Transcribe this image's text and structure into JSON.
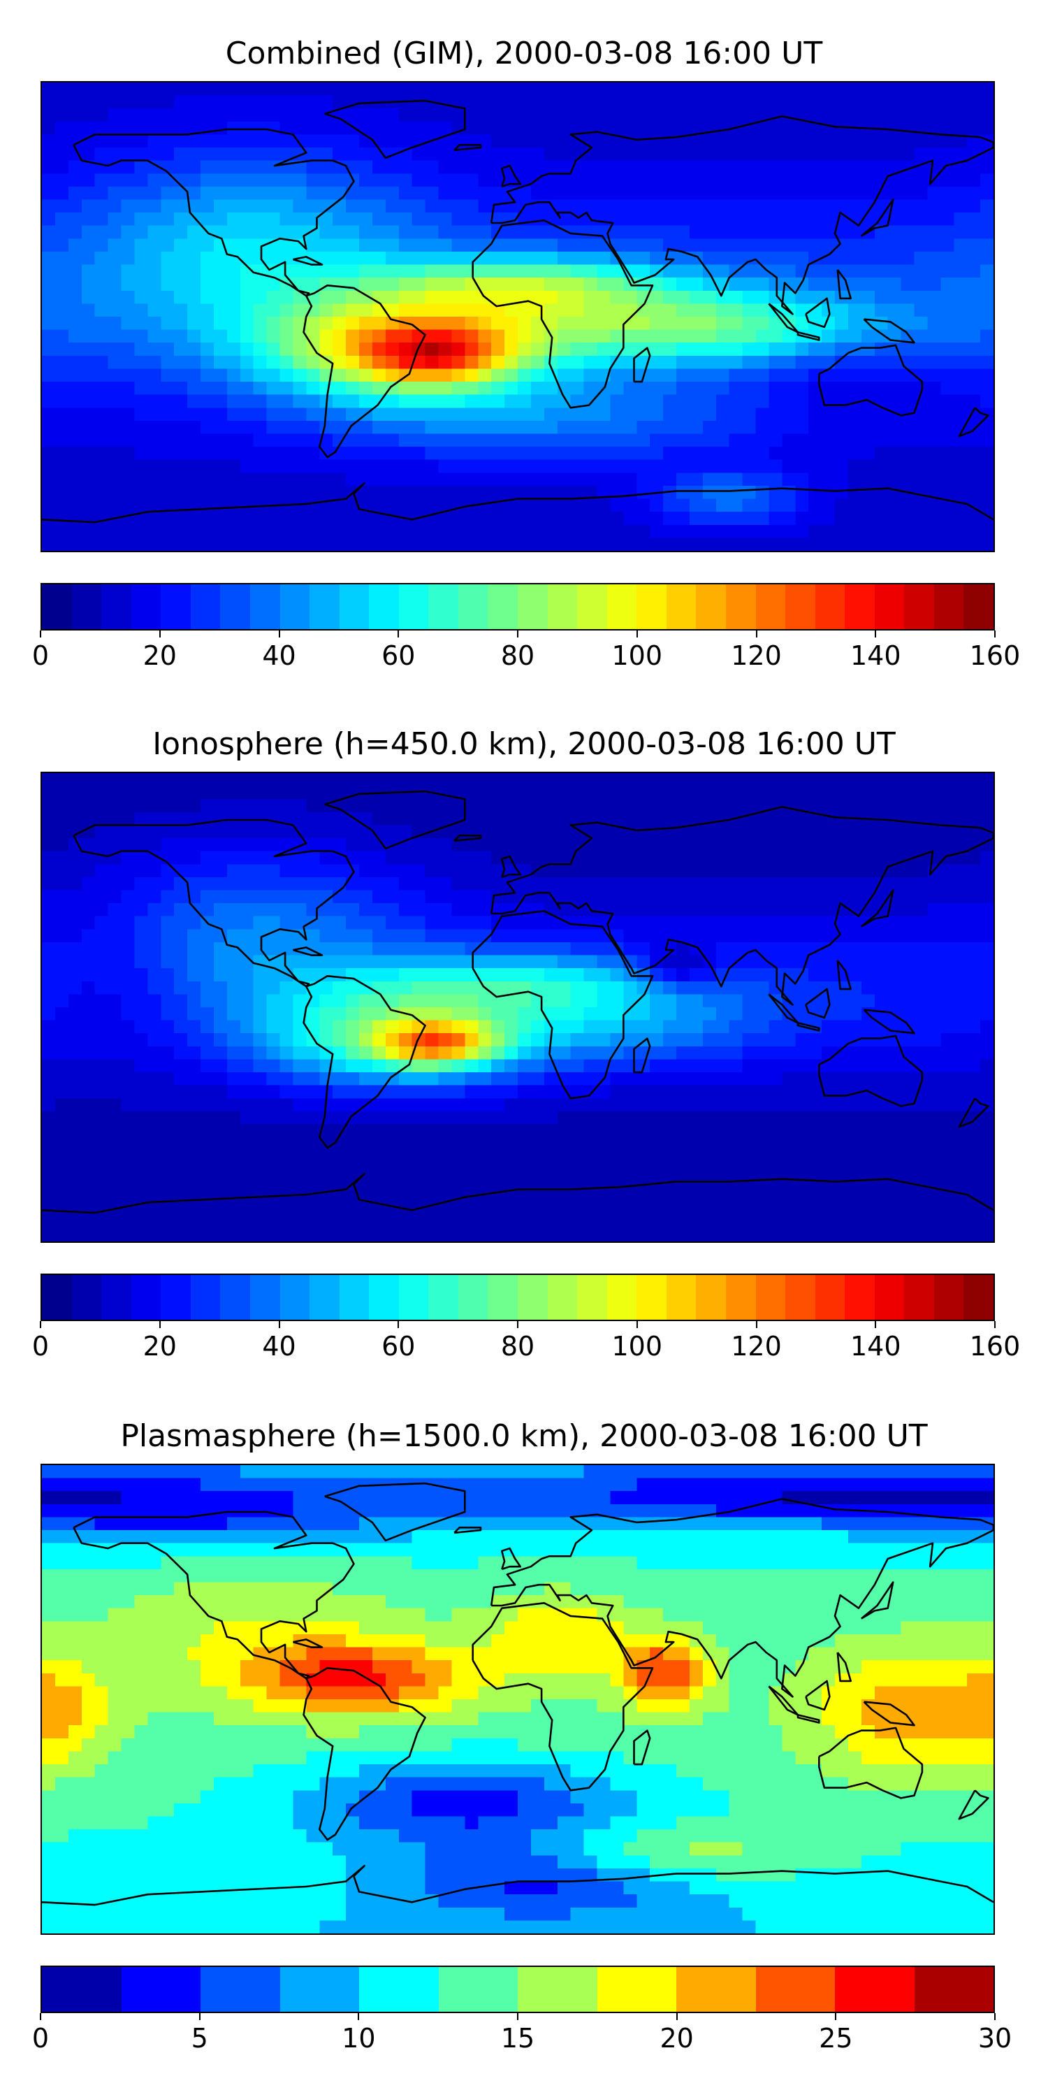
{
  "panels": [
    {
      "title": "Combined (GIM), 2000-03-08 16:00 UT",
      "field": "combined",
      "colorbar": {
        "min": 0,
        "max": 160,
        "levels": 32,
        "ticks": [
          "0",
          "20",
          "40",
          "60",
          "80",
          "100",
          "120",
          "140",
          "160"
        ]
      }
    },
    {
      "title": "Ionosphere  (h=450.0 km), 2000-03-08 16:00 UT",
      "field": "ionosphere",
      "colorbar": {
        "min": 0,
        "max": 160,
        "levels": 32,
        "ticks": [
          "0",
          "20",
          "40",
          "60",
          "80",
          "100",
          "120",
          "140",
          "160"
        ]
      }
    },
    {
      "title": "Plasmasphere (h=1500.0 km), 2000-03-08 16:00 UT",
      "field": "plasmasphere",
      "colorbar": {
        "min": 0,
        "max": 30,
        "levels": 12,
        "ticks": [
          "0",
          "5",
          "10",
          "15",
          "20",
          "25",
          "30"
        ]
      }
    }
  ],
  "colormap": "jet",
  "colormap_stops": [
    "#00007f",
    "#0000ff",
    "#007fff",
    "#00ffff",
    "#7fff7f",
    "#ffff00",
    "#ff7f00",
    "#ff0000",
    "#7f0000"
  ]
}
